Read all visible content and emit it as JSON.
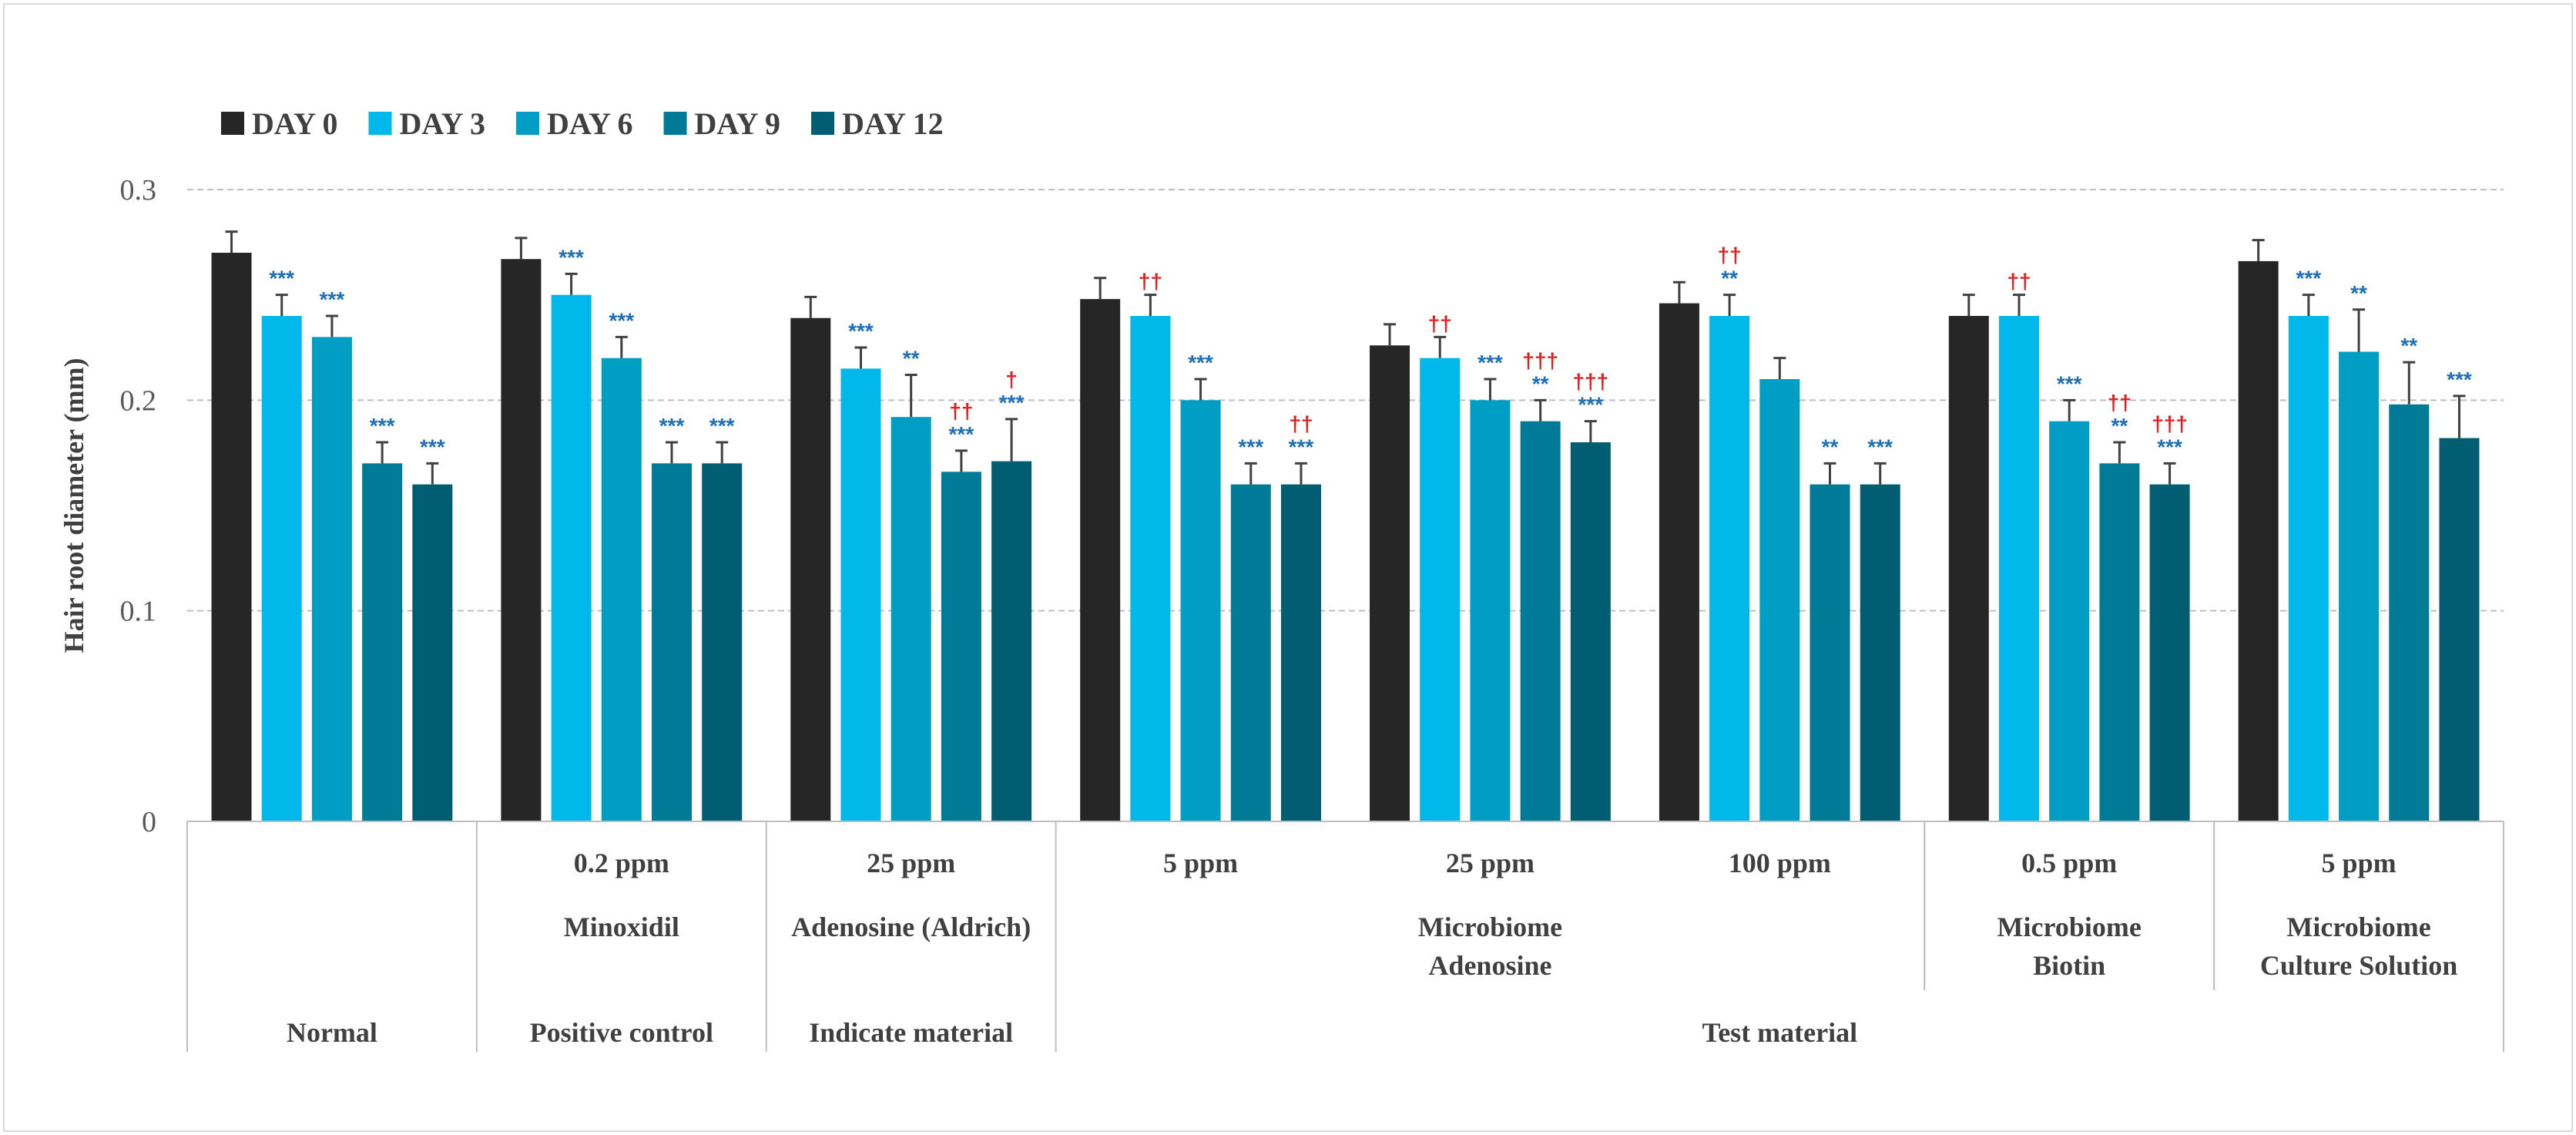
{
  "chart_data": {
    "type": "bar",
    "title": "",
    "ylabel": "Hair root diameter (mm)",
    "xlabel": "",
    "ylim": [
      0,
      0.3
    ],
    "yticks": [
      "0",
      "0.1",
      "0.2",
      "0.3"
    ],
    "grid": true,
    "legend_position": "top-left",
    "series": [
      {
        "name": "DAY 0",
        "color": "#262626",
        "values": [
          0.27,
          0.267,
          0.239,
          0.248,
          0.226,
          0.246,
          0.24,
          0.266
        ],
        "errors": [
          0.01,
          0.01,
          0.01,
          0.01,
          0.01,
          0.01,
          0.01,
          0.01
        ],
        "annotations": [
          [
            "",
            ""
          ],
          [
            "",
            ""
          ],
          [
            "",
            ""
          ],
          [
            "",
            ""
          ],
          [
            "",
            ""
          ],
          [
            "",
            ""
          ],
          [
            "",
            ""
          ],
          [
            "",
            ""
          ]
        ]
      },
      {
        "name": "DAY 3",
        "color": "#00B8EA",
        "values": [
          0.24,
          0.25,
          0.215,
          0.24,
          0.22,
          0.24,
          0.24,
          0.24
        ],
        "errors": [
          0.01,
          0.01,
          0.01,
          0.01,
          0.01,
          0.01,
          0.01,
          0.01
        ],
        "annotations": [
          [
            "",
            "***"
          ],
          [
            "",
            "***"
          ],
          [
            "",
            "***"
          ],
          [
            "††",
            ""
          ],
          [
            "††",
            ""
          ],
          [
            "††",
            "**"
          ],
          [
            "††",
            ""
          ],
          [
            "",
            "***"
          ]
        ]
      },
      {
        "name": "DAY 6",
        "color": "#009DC4",
        "values": [
          0.23,
          0.22,
          0.192,
          0.2,
          0.2,
          0.21,
          0.19,
          0.223
        ],
        "errors": [
          0.01,
          0.01,
          0.02,
          0.01,
          0.01,
          0.01,
          0.01,
          0.02
        ],
        "annotations": [
          [
            "",
            "***"
          ],
          [
            "",
            "***"
          ],
          [
            "",
            "**"
          ],
          [
            "",
            "***"
          ],
          [
            "",
            "***"
          ],
          [
            "",
            ""
          ],
          [
            "",
            "***"
          ],
          [
            "",
            "**"
          ]
        ]
      },
      {
        "name": "DAY 9",
        "color": "#007B97",
        "values": [
          0.17,
          0.17,
          0.166,
          0.16,
          0.19,
          0.16,
          0.17,
          0.198
        ],
        "errors": [
          0.01,
          0.01,
          0.01,
          0.01,
          0.01,
          0.01,
          0.01,
          0.02
        ],
        "annotations": [
          [
            "",
            "***"
          ],
          [
            "",
            "***"
          ],
          [
            "††",
            "***"
          ],
          [
            "",
            "***"
          ],
          [
            "†††",
            "**"
          ],
          [
            "",
            "**"
          ],
          [
            "††",
            "**"
          ],
          [
            "",
            "**"
          ]
        ]
      },
      {
        "name": "DAY 12",
        "color": "#005D72",
        "values": [
          0.16,
          0.17,
          0.171,
          0.16,
          0.18,
          0.16,
          0.16,
          0.182
        ],
        "errors": [
          0.01,
          0.01,
          0.02,
          0.01,
          0.01,
          0.01,
          0.01,
          0.02
        ],
        "annotations": [
          [
            "",
            "***"
          ],
          [
            "",
            "***"
          ],
          [
            "†",
            "***"
          ],
          [
            "††",
            "***"
          ],
          [
            "†††",
            "***"
          ],
          [
            "",
            "***"
          ],
          [
            "†††",
            "***"
          ],
          [
            "",
            "***"
          ]
        ]
      }
    ],
    "annotation_colors": {
      "significance": "#1F6FB7",
      "dagger": "#E02020"
    },
    "categories": [
      {
        "dose": "",
        "material": "",
        "group": "Normal"
      },
      {
        "dose": "0.2 ppm",
        "material": "Minoxidil",
        "group": "Positive control"
      },
      {
        "dose": "25 ppm",
        "material": "Adenosine (Aldrich)",
        "group": "Indicate material"
      },
      {
        "dose": "5 ppm",
        "material": "",
        "group": "Test material"
      },
      {
        "dose": "25 ppm",
        "material": "",
        "group": "Test material"
      },
      {
        "dose": "100 ppm",
        "material": "",
        "group": "Test material"
      },
      {
        "dose": "0.5 ppm",
        "material": "",
        "group": "Test material"
      },
      {
        "dose": "5 ppm",
        "material": "",
        "group": "Test material"
      }
    ],
    "material_labels": [
      {
        "lines": [
          "Minoxidil"
        ],
        "from": 1,
        "to": 1
      },
      {
        "lines": [
          "Adenosine (Aldrich)"
        ],
        "from": 2,
        "to": 2
      },
      {
        "lines": [
          "Microbiome",
          "Adenosine"
        ],
        "from": 3,
        "to": 5
      },
      {
        "lines": [
          "Microbiome",
          "Biotin"
        ],
        "from": 6,
        "to": 6
      },
      {
        "lines": [
          "Microbiome",
          "Culture Solution"
        ],
        "from": 7,
        "to": 7
      }
    ],
    "group_labels": [
      {
        "label": "Normal",
        "from": 0,
        "to": 0
      },
      {
        "label": "Positive control",
        "from": 1,
        "to": 1
      },
      {
        "label": "Indicate material",
        "from": 2,
        "to": 2
      },
      {
        "label": "Test material",
        "from": 3,
        "to": 7
      }
    ]
  }
}
